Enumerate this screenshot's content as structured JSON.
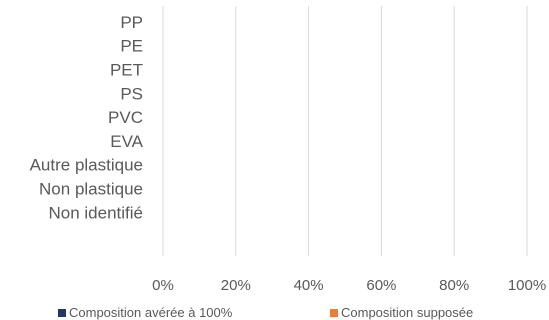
{
  "chart_data": {
    "type": "bar",
    "orientation": "horizontal",
    "stacked": true,
    "categories": [
      "PP",
      "PE",
      "PET",
      "PS",
      "PVC",
      "EVA",
      "Autre plastique",
      "Non plastique",
      "Non identifié"
    ],
    "series": [
      {
        "name": "Composition avérée à 100%",
        "color": "#1f3864",
        "values": [
          0,
          0,
          0,
          0,
          0,
          0,
          0,
          0,
          0
        ]
      },
      {
        "name": "Composition supposée",
        "color": "#ed7d31",
        "values": [
          0,
          0,
          0,
          0,
          0,
          0,
          0,
          0,
          0
        ]
      }
    ],
    "x_ticks": [
      "0%",
      "20%",
      "40%",
      "60%",
      "80%",
      "100%"
    ],
    "xlim": [
      0,
      100
    ],
    "grid": true,
    "legend_position": "bottom",
    "gridline_color": "#d9d9d9"
  }
}
